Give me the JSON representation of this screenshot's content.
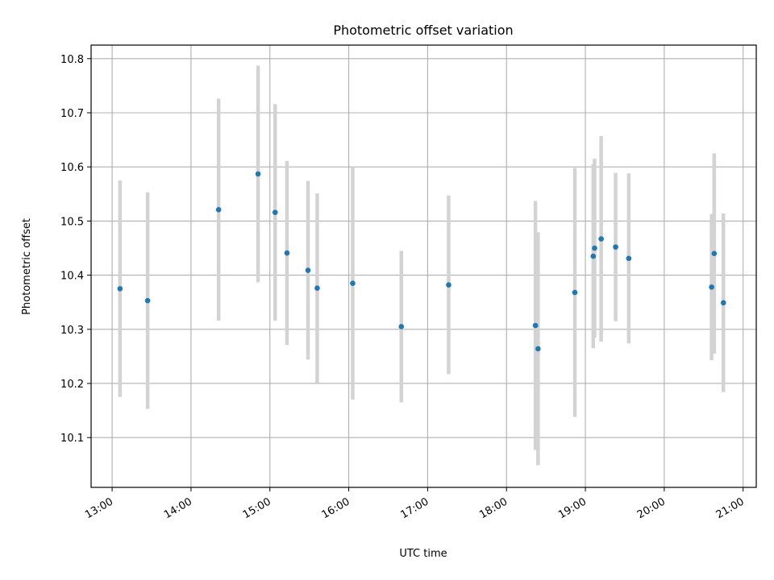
{
  "chart_data": {
    "type": "scatter",
    "title": "Photometric offset variation",
    "xlabel": "UTC time",
    "ylabel": "Photometric offset",
    "x_ticks": [
      "13:00",
      "14:00",
      "15:00",
      "16:00",
      "17:00",
      "18:00",
      "19:00",
      "20:00",
      "21:00"
    ],
    "y_ticks": [
      "10.1",
      "10.2",
      "10.3",
      "10.4",
      "10.5",
      "10.6",
      "10.7",
      "10.8"
    ],
    "x_range": [
      "12:44",
      "21:10"
    ],
    "ylim": [
      10.008,
      10.825
    ],
    "grid": true,
    "marker_color": "#1f77b4",
    "errorbar_color": "#d3d3d3",
    "points": [
      {
        "time": "13:06",
        "y": 10.375,
        "err": 0.2
      },
      {
        "time": "13:27",
        "y": 10.353,
        "err": 0.2
      },
      {
        "time": "14:21",
        "y": 10.521,
        "err": 0.205
      },
      {
        "time": "14:51",
        "y": 10.587,
        "err": 0.2
      },
      {
        "time": "15:04",
        "y": 10.516,
        "err": 0.2
      },
      {
        "time": "15:13",
        "y": 10.441,
        "err": 0.17
      },
      {
        "time": "15:29",
        "y": 10.409,
        "err": 0.165
      },
      {
        "time": "15:36",
        "y": 10.376,
        "err": 0.175
      },
      {
        "time": "16:03",
        "y": 10.385,
        "err": 0.215
      },
      {
        "time": "16:40",
        "y": 10.305,
        "err": 0.14
      },
      {
        "time": "17:16",
        "y": 10.382,
        "err": 0.165
      },
      {
        "time": "18:22",
        "y": 10.307,
        "err": 0.23
      },
      {
        "time": "18:24",
        "y": 10.264,
        "err": 0.215
      },
      {
        "time": "18:52",
        "y": 10.368,
        "err": 0.23
      },
      {
        "time": "19:06",
        "y": 10.435,
        "err": 0.17
      },
      {
        "time": "19:07",
        "y": 10.45,
        "err": 0.165
      },
      {
        "time": "19:12",
        "y": 10.467,
        "err": 0.19
      },
      {
        "time": "19:23",
        "y": 10.452,
        "err": 0.137
      },
      {
        "time": "19:33",
        "y": 10.431,
        "err": 0.157
      },
      {
        "time": "20:36",
        "y": 10.378,
        "err": 0.135
      },
      {
        "time": "20:38",
        "y": 10.44,
        "err": 0.185
      },
      {
        "time": "20:45",
        "y": 10.349,
        "err": 0.165
      }
    ]
  }
}
